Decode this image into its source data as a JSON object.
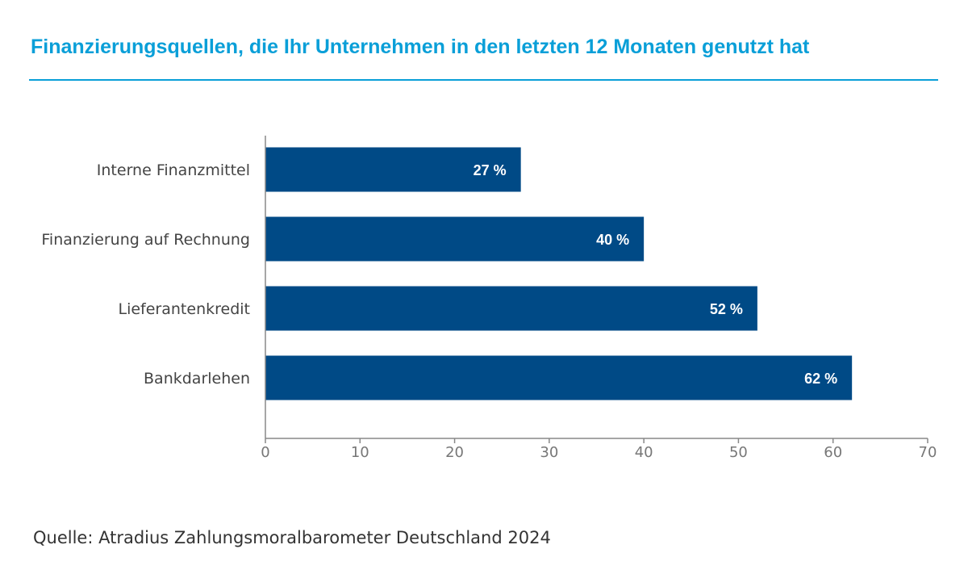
{
  "title": "Finanzierungsquellen, die Ihr Unternehmen in den letzten 12 Monaten genutzt hat",
  "source": "Quelle: Atradius Zahlungsmoralbarometer Deutschland 2024",
  "colors": {
    "title": "#0a9fd8",
    "bar": "#004a86",
    "bar_label": "#ffffff",
    "axis": "#888888",
    "tick_text": "#777777",
    "category_text": "#444444",
    "source_text": "#333333"
  },
  "chart_data": {
    "type": "bar",
    "orientation": "horizontal",
    "categories": [
      "Interne Finanzmittel",
      "Finanzierung auf Rechnung",
      "Lieferantenkredit",
      "Bankdarlehen"
    ],
    "values": [
      27,
      40,
      52,
      62
    ],
    "value_labels": [
      "27 %",
      "40 %",
      "52 %",
      "62 %"
    ],
    "xlim": [
      0,
      70
    ],
    "xticks": [
      0,
      10,
      20,
      30,
      40,
      50,
      60,
      70
    ],
    "grid": false,
    "legend": "none"
  }
}
